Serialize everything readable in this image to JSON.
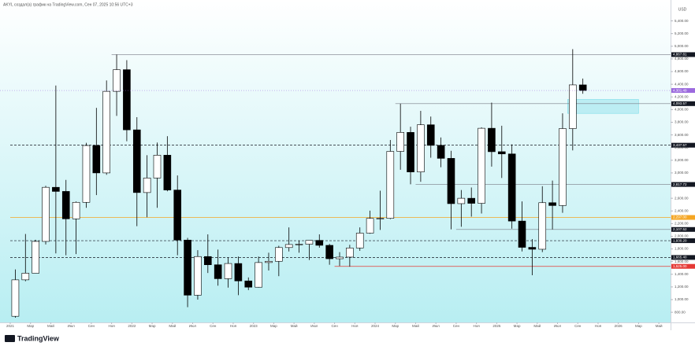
{
  "header": "AKYL создал(а) график на TradingView.com, Сен 07, 2025 10:56 UTC+3",
  "footer": "TradingView",
  "chart_data": {
    "type": "candlestick",
    "currency": "USD",
    "x": [
      "2021-01",
      "2021-02",
      "2021-03",
      "2021-04",
      "2021-05",
      "2021-06",
      "2021-07",
      "2021-08",
      "2021-09",
      "2021-10",
      "2021-11",
      "2021-12",
      "2022-01",
      "2022-02",
      "2022-03",
      "2022-04",
      "2022-05",
      "2022-06",
      "2022-07",
      "2022-08",
      "2022-09",
      "2022-10",
      "2022-11",
      "2022-12",
      "2023-01",
      "2023-02",
      "2023-03",
      "2023-04",
      "2023-05",
      "2023-06",
      "2023-07",
      "2023-08",
      "2023-09",
      "2023-10",
      "2023-11",
      "2023-12",
      "2024-01",
      "2024-02",
      "2024-03",
      "2024-04",
      "2024-05",
      "2024-06",
      "2024-07",
      "2024-08",
      "2024-09",
      "2024-10",
      "2024-11",
      "2024-12",
      "2025-01",
      "2025-02",
      "2025-03",
      "2025-04",
      "2025-05",
      "2025-06",
      "2025-07",
      "2025-08",
      "2025-09"
    ],
    "open": [
      737,
      1312,
      1417,
      1919,
      2773,
      2708,
      2275,
      2536,
      3433,
      3000,
      4288,
      4630,
      3680,
      2690,
      2920,
      3280,
      2730,
      1940,
      1070,
      1680,
      1550,
      1330,
      1570,
      1295,
      1196,
      1585,
      1605,
      1822,
      1870,
      1875,
      1935,
      1857,
      1645,
      1671,
      1815,
      2050,
      2282,
      2283,
      3340,
      3640,
      3015,
      3760,
      3435,
      3230,
      2515,
      2600,
      2520,
      3705,
      3335,
      3300,
      2240,
      1825,
      1795,
      2530,
      2485,
      3700,
      4390
    ],
    "high": [
      1476,
      2036,
      1945,
      2797,
      4380,
      2890,
      2550,
      3475,
      4027,
      4460,
      4868,
      4780,
      3880,
      3280,
      3480,
      3580,
      2960,
      1975,
      1780,
      2030,
      1790,
      1660,
      1680,
      1350,
      1680,
      1740,
      1850,
      2140,
      1930,
      1930,
      2030,
      1880,
      1750,
      1865,
      2140,
      2405,
      2720,
      3520,
      4093,
      3730,
      3980,
      3890,
      3560,
      3350,
      2730,
      2770,
      3720,
      4110,
      3745,
      3450,
      2550,
      1955,
      2790,
      2880,
      3940,
      4953.73,
      4490
    ],
    "low": [
      714,
      1290,
      1440,
      1870,
      1730,
      1700,
      1718,
      2450,
      2650,
      2970,
      3900,
      3500,
      2160,
      2300,
      2450,
      2710,
      1700,
      880,
      1000,
      1420,
      1220,
      1190,
      1070,
      1150,
      1190,
      1460,
      1370,
      1760,
      1740,
      1625,
      1820,
      1550,
      1530,
      1520,
      1770,
      2040,
      2100,
      2270,
      3050,
      2820,
      2860,
      3240,
      3090,
      2110,
      2150,
      2310,
      2360,
      3100,
      2920,
      2120,
      1760,
      1385,
      1750,
      2110,
      2370,
      3355,
      4250
    ],
    "close": [
      1312,
      1417,
      1919,
      2773,
      2708,
      2275,
      2536,
      3433,
      3000,
      4288,
      4630,
      3680,
      2690,
      2920,
      3280,
      2730,
      1940,
      1070,
      1680,
      1550,
      1330,
      1570,
      1295,
      1196,
      1585,
      1605,
      1822,
      1870,
      1875,
      1935,
      1857,
      1645,
      1671,
      1815,
      2050,
      2282,
      2283,
      3340,
      3640,
      3015,
      3760,
      3435,
      3230,
      2515,
      2600,
      2520,
      3705,
      3335,
      3300,
      2240,
      1825,
      1795,
      2530,
      2485,
      3700,
      4390,
      4301.49
    ],
    "up_color": "#ffffff",
    "down_color": "#000000",
    "border_color": "#000000",
    "ylim": [
      640,
      5730
    ],
    "yticks": [
      {
        "value": 800,
        "label": "800.00"
      },
      {
        "value": 1000,
        "label": "1,000.00"
      },
      {
        "value": 1200,
        "label": "1,200.00"
      },
      {
        "value": 1400,
        "label": "1,400.00"
      },
      {
        "value": 1600,
        "label": "1,600.00"
      },
      {
        "value": 1800,
        "label": "1,800.00"
      },
      {
        "value": 2000,
        "label": "2,000.00"
      },
      {
        "value": 2200,
        "label": "2,200.00"
      },
      {
        "value": 2400,
        "label": "2,400.00"
      },
      {
        "value": 2600,
        "label": "2,600.00"
      },
      {
        "value": 2800,
        "label": "2,800.00"
      },
      {
        "value": 3000,
        "label": "3,000.00"
      },
      {
        "value": 3200,
        "label": "3,200.00"
      },
      {
        "value": 3400,
        "label": "3,400.00"
      },
      {
        "value": 3600,
        "label": "3,600.00"
      },
      {
        "value": 3800,
        "label": "3,800.00"
      },
      {
        "value": 4000,
        "label": "4,000.00"
      },
      {
        "value": 4200,
        "label": "4,200.00"
      },
      {
        "value": 4400,
        "label": "4,400.00"
      },
      {
        "value": 4600,
        "label": "4,600.00"
      },
      {
        "value": 4800,
        "label": "4,800.00"
      },
      {
        "value": 5000,
        "label": "5,000.00"
      },
      {
        "value": 5200,
        "label": "5,200.00"
      },
      {
        "value": 5400,
        "label": "5,400.00"
      }
    ],
    "xlim": [
      "2021-01",
      "2026-06"
    ],
    "xticks": [
      {
        "value": "2021-01",
        "label": "2021"
      },
      {
        "value": "2021-03",
        "label": "Мар"
      },
      {
        "value": "2021-05",
        "label": "Май"
      },
      {
        "value": "2021-07",
        "label": "Июл"
      },
      {
        "value": "2021-09",
        "label": "Сен"
      },
      {
        "value": "2021-11",
        "label": "Ноя"
      },
      {
        "value": "2022-01",
        "label": "2022"
      },
      {
        "value": "2022-03",
        "label": "Мар"
      },
      {
        "value": "2022-05",
        "label": "Май"
      },
      {
        "value": "2022-07",
        "label": "Июл"
      },
      {
        "value": "2022-09",
        "label": "Сен"
      },
      {
        "value": "2022-11",
        "label": "Ноя"
      },
      {
        "value": "2023-01",
        "label": "2023"
      },
      {
        "value": "2023-03",
        "label": "Мар"
      },
      {
        "value": "2023-05",
        "label": "Май"
      },
      {
        "value": "2023-07",
        "label": "Июл"
      },
      {
        "value": "2023-09",
        "label": "Сен"
      },
      {
        "value": "2023-11",
        "label": "Ноя"
      },
      {
        "value": "2024-01",
        "label": "2024"
      },
      {
        "value": "2024-03",
        "label": "Мар"
      },
      {
        "value": "2024-05",
        "label": "Май"
      },
      {
        "value": "2024-07",
        "label": "Июл"
      },
      {
        "value": "2024-09",
        "label": "Сен"
      },
      {
        "value": "2024-11",
        "label": "Ноя"
      },
      {
        "value": "2025-01",
        "label": "2025"
      },
      {
        "value": "2025-03",
        "label": "Мар"
      },
      {
        "value": "2025-05",
        "label": "Май"
      },
      {
        "value": "2025-07",
        "label": "Июл"
      },
      {
        "value": "2025-09",
        "label": "Сен"
      },
      {
        "value": "2025-11",
        "label": "Ноя"
      },
      {
        "value": "2026-01",
        "label": "2026"
      },
      {
        "value": "2026-03",
        "label": "Мар"
      },
      {
        "value": "2026-05",
        "label": "Май"
      }
    ],
    "grid": false,
    "levels": [
      {
        "value": 4867.81,
        "label": "4,867.81",
        "from": "2021-11",
        "style": "solid",
        "color": "#787b86"
      },
      {
        "value": 4093.57,
        "label": "4,093.57",
        "from": "2024-03",
        "style": "solid",
        "color": "#787b86"
      },
      {
        "value": 3437.57,
        "label": "3,437.57",
        "from": "2021-01",
        "style": "dashed",
        "color": "#131722"
      },
      {
        "value": 2817.72,
        "label": "2,817.72",
        "from": "2024-05",
        "style": "solid",
        "color": "#787b86"
      },
      {
        "value": 2297.0,
        "label": "2,297.00",
        "from": "2021-01",
        "style": "solid",
        "color": "#f5a623"
      },
      {
        "value": 2107.52,
        "label": "2,107.52",
        "from": "2024-09",
        "style": "solid",
        "color": "#787b86"
      },
      {
        "value": 1930.2,
        "label": "1,930.20",
        "from": "2021-01",
        "style": "dashed",
        "color": "#131722"
      },
      {
        "value": 1665.4,
        "label": "1,665.40",
        "from": "2021-01",
        "style": "dashed",
        "color": "#131722"
      },
      {
        "value": 1525.0,
        "label": "1,525.00",
        "from": "2023-09",
        "style": "solid",
        "color": "#e53935"
      }
    ],
    "zone": {
      "top": 4160,
      "bottom": 3940,
      "from": "2025-08",
      "to": "2026-03",
      "color": "#b2ebf2"
    },
    "last_price": {
      "value": 4301.49,
      "label": "4,301.49",
      "color": "#9c6ade"
    }
  }
}
